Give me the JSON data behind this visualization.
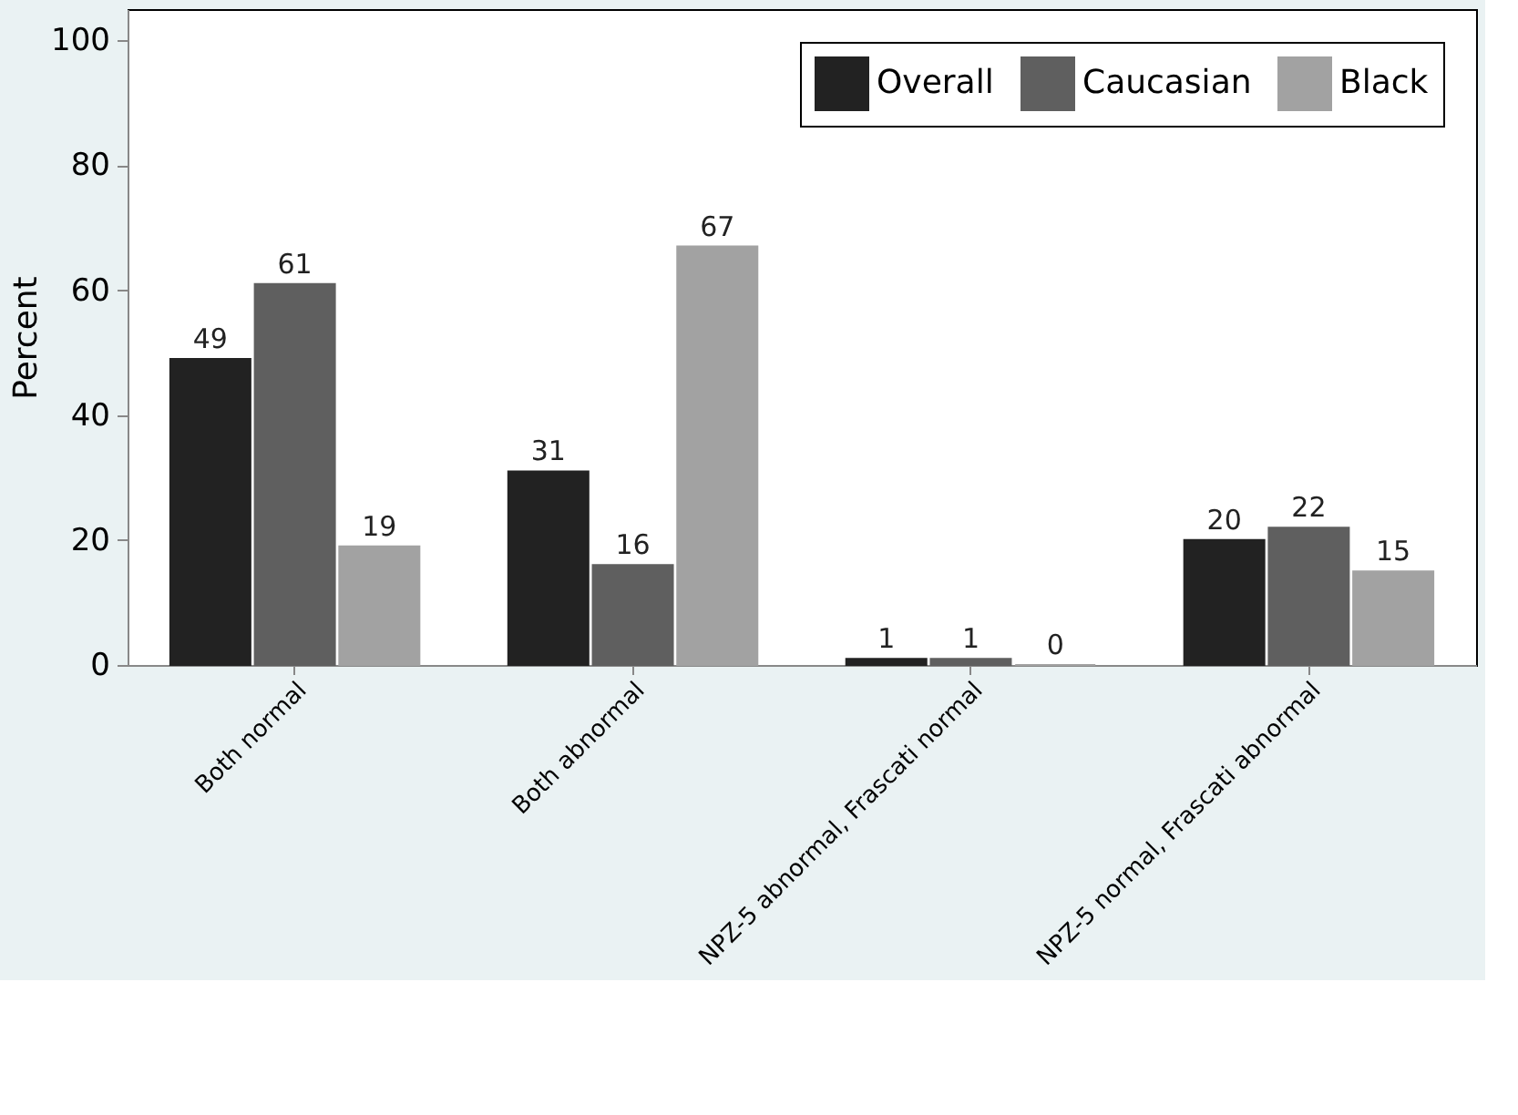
{
  "chart_data": {
    "type": "bar",
    "ylabel": "Percent",
    "categories": [
      "Both normal",
      "Both abnormal",
      "NPZ-5 abnormal, Frascati normal",
      "NPZ-5 normal, Frascati abnormal"
    ],
    "series": [
      {
        "name": "Overall",
        "color": "#222222",
        "values": [
          49,
          31,
          1,
          20
        ]
      },
      {
        "name": "Caucasian",
        "color": "#5f5f5f",
        "values": [
          61,
          16,
          1,
          22
        ]
      },
      {
        "name": "Black",
        "color": "#a2a2a2",
        "values": [
          19,
          67,
          0,
          15
        ]
      }
    ],
    "ylim": [
      0,
      105
    ],
    "yticks": [
      0,
      20,
      40,
      60,
      80,
      100
    ],
    "data_labels": true,
    "legend": "top right",
    "grid": false
  }
}
